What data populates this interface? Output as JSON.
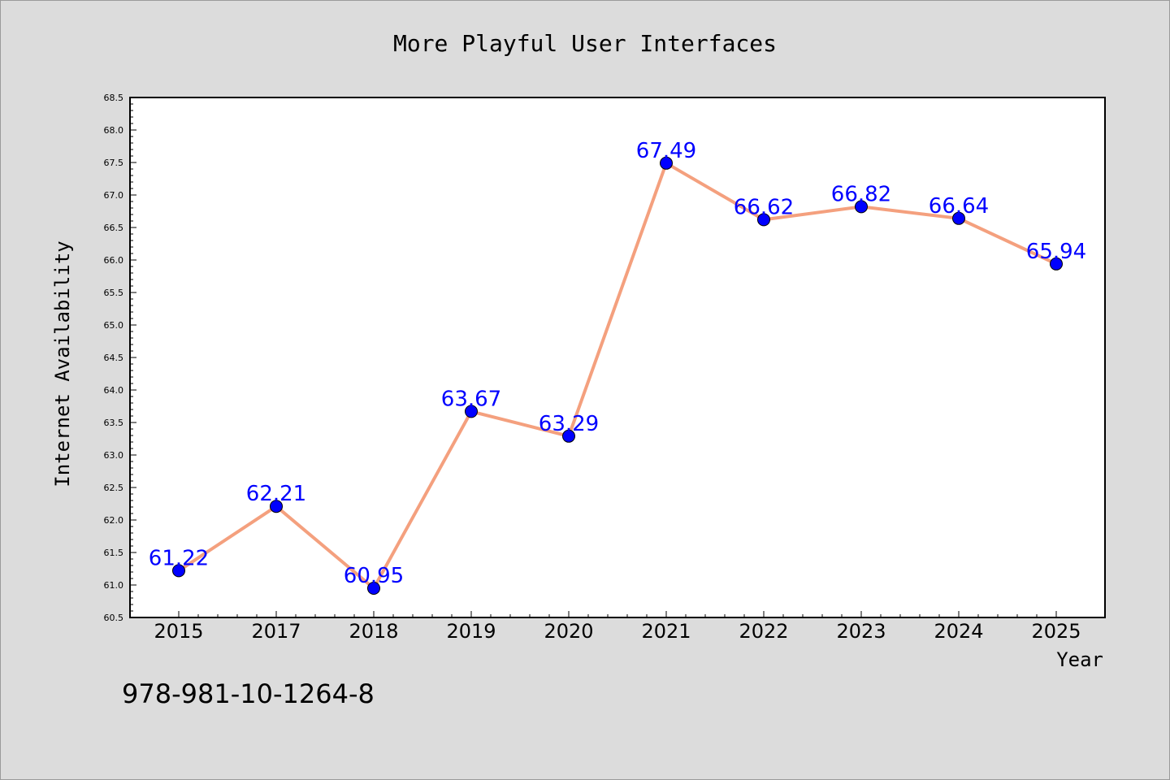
{
  "chart_data": {
    "type": "line",
    "title": "More Playful User Interfaces",
    "xlabel": "Year",
    "ylabel": "Internet Availability",
    "categories": [
      "2015",
      "2017",
      "2018",
      "2019",
      "2020",
      "2021",
      "2022",
      "2023",
      "2024",
      "2025"
    ],
    "series": [
      {
        "values": [
          61.22,
          62.21,
          60.95,
          63.67,
          63.29,
          67.49,
          66.62,
          66.82,
          66.64,
          65.94
        ],
        "labels": [
          "61.22",
          "62.21",
          "60.95",
          "63.67",
          "63.29",
          "67.49",
          "66.62",
          "66.82",
          "66.64",
          "65.94"
        ],
        "line_color": "#f4a07e",
        "marker_color": "#0000ff"
      }
    ],
    "ylim": [
      60.5,
      68.5
    ],
    "yticks": [
      "60.5",
      "61.0",
      "61.5",
      "62.0",
      "62.5",
      "63.0",
      "63.5",
      "64.0",
      "64.5",
      "65.0",
      "65.5",
      "66.0",
      "66.5",
      "67.0",
      "67.5",
      "68.0",
      "68.5"
    ],
    "grid": false,
    "legend": false
  },
  "footer": {
    "isbn": "978-981-10-1264-8"
  },
  "colors": {
    "background": "#dcdcdc",
    "plot_area": "#ffffff",
    "line": "#f4a07e",
    "marker": "#0000ff",
    "data_label": "#0000ff"
  }
}
